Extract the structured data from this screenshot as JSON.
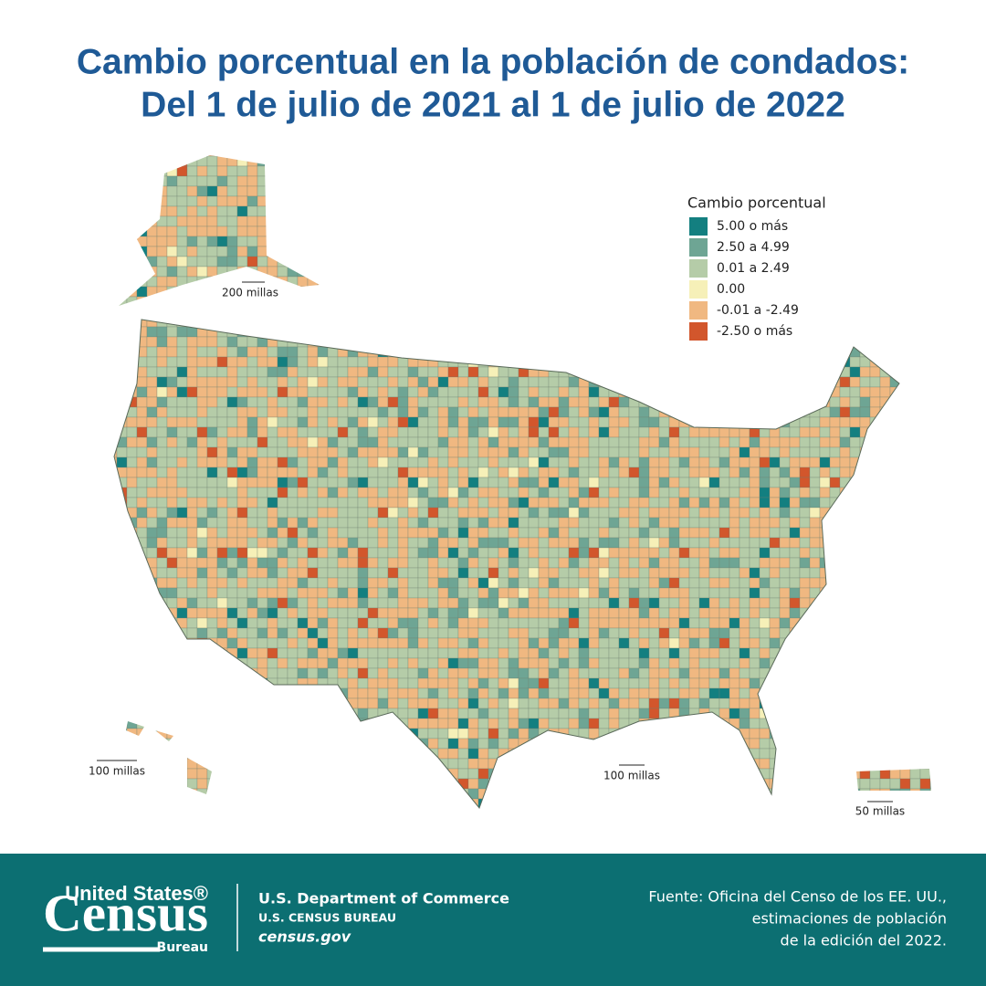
{
  "title": [
    "Cambio porcentual en la población de condados:",
    "Del 1 de julio de 2021 al 1 de julio de 2022"
  ],
  "legend": {
    "title": "Cambio porcentual",
    "items": [
      {
        "label": "5.00 o más",
        "color": "#137f80"
      },
      {
        "label": "2.50 a 4.99",
        "color": "#6ea594"
      },
      {
        "label": "0.01 a 2.49",
        "color": "#b5cca8"
      },
      {
        "label": "0.00",
        "color": "#f6f0b8"
      },
      {
        "label": "-0.01 a -2.49",
        "color": "#f0b881"
      },
      {
        "label": "-2.50 o más",
        "color": "#d2562c"
      }
    ]
  },
  "scale_labels": {
    "alaska": "200 millas",
    "hawaii": "100 millas",
    "conus": "100 millas",
    "puerto_rico": "50 millas"
  },
  "footer": {
    "logo": {
      "line1": "United States®",
      "line2": "Census",
      "line3": "Bureau"
    },
    "dept": "U.S. Department of Commerce",
    "bureau": "U.S. CENSUS BUREAU",
    "url": "census.gov",
    "source": [
      "Fuente: Oficina del Censo de los EE. UU.,",
      "estimaciones de población",
      "de la edición del 2022."
    ]
  }
}
